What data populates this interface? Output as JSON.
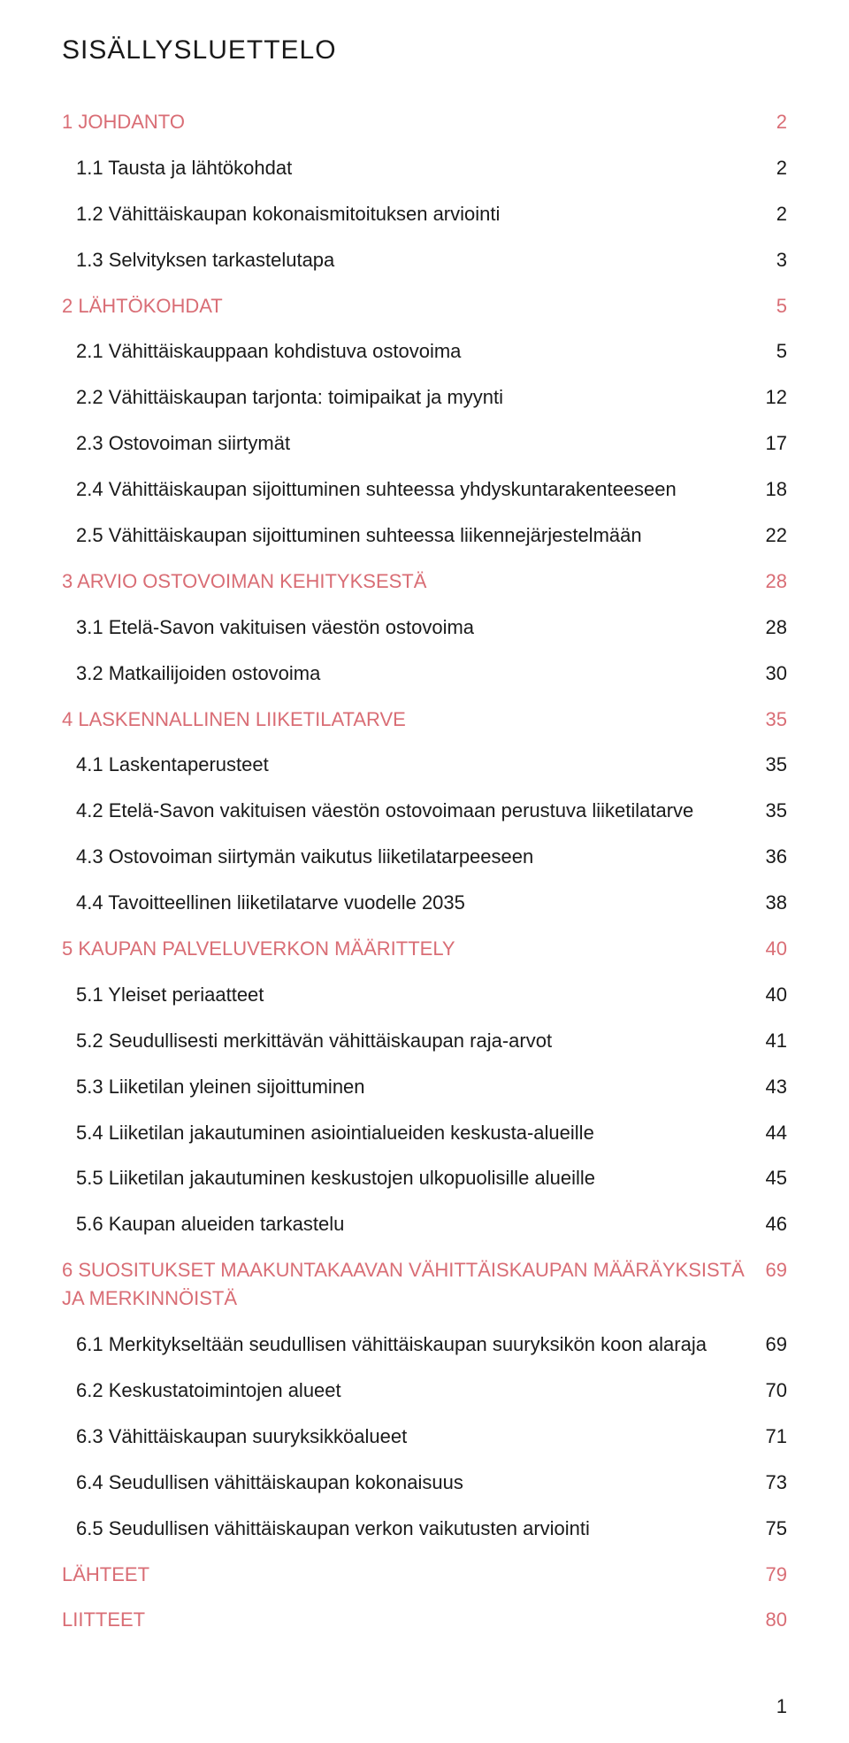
{
  "title": "SISÄLLYSLUETTELO",
  "accent_color": "#d96d75",
  "text_color": "#1a1a1a",
  "page_number": "1",
  "toc": [
    {
      "type": "heading",
      "label": "1 JOHDANTO",
      "page": "2"
    },
    {
      "type": "sub",
      "label": "1.1 Tausta ja lähtökohdat",
      "page": "2"
    },
    {
      "type": "sub",
      "label": "1.2 Vähittäiskaupan kokonaismitoituksen arviointi",
      "page": "2"
    },
    {
      "type": "sub",
      "label": "1.3 Selvityksen tarkastelutapa",
      "page": "3"
    },
    {
      "type": "heading",
      "label": "2 LÄHTÖKOHDAT",
      "page": "5"
    },
    {
      "type": "sub",
      "label": "2.1 Vähittäiskauppaan kohdistuva ostovoima",
      "page": "5"
    },
    {
      "type": "sub",
      "label": "2.2 Vähittäiskaupan tarjonta: toimipaikat ja myynti",
      "page": "12"
    },
    {
      "type": "sub",
      "label": "2.3 Ostovoiman siirtymät",
      "page": "17"
    },
    {
      "type": "sub",
      "label": "2.4 Vähittäiskaupan sijoittuminen suhteessa yhdyskuntarakenteeseen",
      "page": "18"
    },
    {
      "type": "sub",
      "label": "2.5 Vähittäiskaupan sijoittuminen suhteessa liikennejärjestelmään",
      "page": "22"
    },
    {
      "type": "heading",
      "label": "3 ARVIO OSTOVOIMAN KEHITYKSESTÄ",
      "page": "28"
    },
    {
      "type": "sub",
      "label": "3.1 Etelä-Savon vakituisen väestön ostovoima",
      "page": "28"
    },
    {
      "type": "sub",
      "label": "3.2 Matkailijoiden ostovoima",
      "page": "30"
    },
    {
      "type": "heading",
      "label": "4 LASKENNALLINEN LIIKETILATARVE",
      "page": "35"
    },
    {
      "type": "sub",
      "label": "4.1 Laskentaperusteet",
      "page": "35"
    },
    {
      "type": "sub",
      "label": "4.2 Etelä-Savon vakituisen väestön ostovoimaan perustuva liiketilatarve",
      "page": "35"
    },
    {
      "type": "sub",
      "label": "4.3 Ostovoiman siirtymän vaikutus liiketilatarpeeseen",
      "page": "36"
    },
    {
      "type": "sub",
      "label": "4.4 Tavoitteellinen liiketilatarve vuodelle 2035",
      "page": "38"
    },
    {
      "type": "heading",
      "label": "5 KAUPAN PALVELUVERKON MÄÄRITTELY",
      "page": "40"
    },
    {
      "type": "sub",
      "label": "5.1 Yleiset periaatteet",
      "page": "40"
    },
    {
      "type": "sub",
      "label": "5.2 Seudullisesti merkittävän vähittäiskaupan raja-arvot",
      "page": "41"
    },
    {
      "type": "sub",
      "label": "5.3 Liiketilan yleinen sijoittuminen",
      "page": "43"
    },
    {
      "type": "sub",
      "label": "5.4 Liiketilan jakautuminen asiointialueiden keskusta-alueille",
      "page": "44"
    },
    {
      "type": "sub",
      "label": "5.5 Liiketilan jakautuminen keskustojen ulkopuolisille alueille",
      "page": "45"
    },
    {
      "type": "sub",
      "label": "5.6 Kaupan alueiden tarkastelu",
      "page": "46"
    },
    {
      "type": "heading-multi",
      "label": "6 SUOSITUKSET MAAKUNTAKAAVAN VÄHITTÄISKAUPAN MÄÄRÄYKSISTÄ JA MERKINNÖISTÄ",
      "page": "69"
    },
    {
      "type": "sub",
      "label": "6.1 Merkitykseltään seudullisen vähittäiskaupan suuryksikön koon alaraja",
      "page": "69"
    },
    {
      "type": "sub",
      "label": "6.2 Keskustatoimintojen alueet",
      "page": "70"
    },
    {
      "type": "sub",
      "label": "6.3 Vähittäiskaupan suuryksikköalueet",
      "page": "71"
    },
    {
      "type": "sub",
      "label": "6.4 Seudullisen vähittäiskaupan kokonaisuus",
      "page": "73"
    },
    {
      "type": "sub",
      "label": "6.5 Seudullisen vähittäiskaupan verkon vaikutusten arviointi",
      "page": "75"
    },
    {
      "type": "heading",
      "label": "LÄHTEET",
      "page": "79"
    },
    {
      "type": "heading",
      "label": "LIITTEET",
      "page": "80"
    }
  ]
}
